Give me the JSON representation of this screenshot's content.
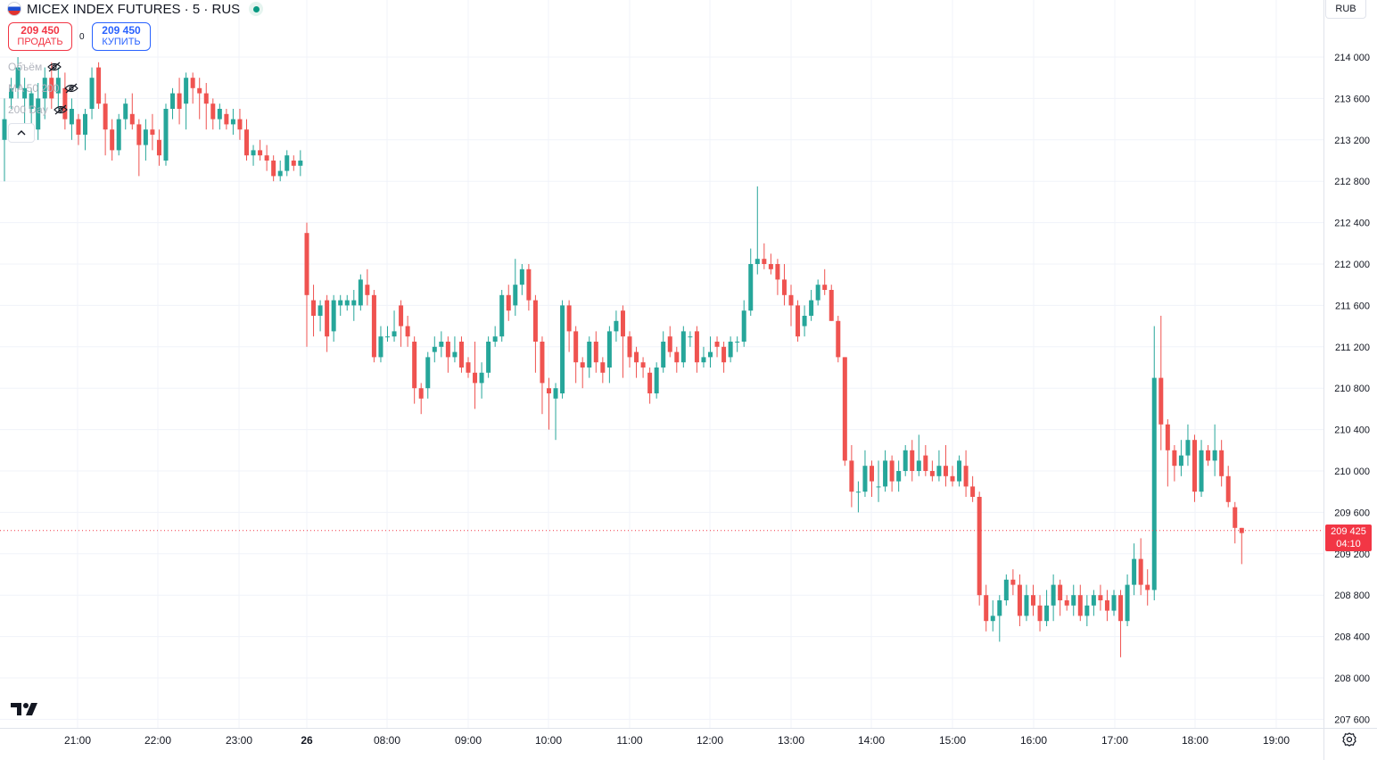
{
  "header": {
    "symbol_title": "MICEX INDEX FUTURES · 5 · RUS",
    "sell_price": "209 450",
    "sell_label": "ПРОДАТЬ",
    "spread": "0",
    "buy_price": "209 450",
    "buy_label": "КУПИТЬ",
    "indicators": [
      "Объём",
      "MA 50 200",
      "200 Day"
    ],
    "currency": "RUB"
  },
  "last_price": {
    "value": "209 425",
    "countdown": "04:10"
  },
  "colors": {
    "up": "#26a69a",
    "down": "#ef5350",
    "grid": "#f0f3fa",
    "last": "#f23645"
  },
  "chart_data": {
    "type": "candlestick",
    "title": "MICEX INDEX FUTURES · 5 · RUS",
    "ylim": [
      207400,
      214400
    ],
    "y_ticks": [
      "207 600",
      "208 000",
      "208 400",
      "208 800",
      "209 200",
      "209 600",
      "210 000",
      "210 400",
      "210 800",
      "211 200",
      "211 600",
      "212 000",
      "212 400",
      "212 800",
      "213 200",
      "213 600",
      "214 000"
    ],
    "x_ticks": [
      "21:00",
      "22:00",
      "23:00",
      "26",
      "08:00",
      "09:00",
      "10:00",
      "11:00",
      "12:00",
      "13:00",
      "14:00",
      "15:00",
      "16:00",
      "17:00",
      "18:00",
      "19:00"
    ],
    "last_price": 209425,
    "session_1": {
      "start": "20:25",
      "interval_min": 5,
      "candles": [
        [
          213200,
          213400,
          212800,
          213600
        ],
        [
          213600,
          213700,
          213500,
          213800
        ],
        [
          213700,
          213900,
          213600,
          214000
        ],
        [
          213600,
          213700,
          213350,
          213800
        ],
        [
          213500,
          213650,
          213300,
          213700
        ],
        [
          213300,
          213600,
          213200,
          213750
        ],
        [
          213600,
          213800,
          213400,
          213900
        ],
        [
          213800,
          213600,
          213500,
          213950
        ],
        [
          213650,
          213800,
          213500,
          213900
        ],
        [
          213700,
          213400,
          213300,
          213850
        ],
        [
          213350,
          213500,
          213200,
          213600
        ],
        [
          213400,
          213250,
          213150,
          213450
        ],
        [
          213250,
          213450,
          213100,
          213500
        ],
        [
          213500,
          213800,
          213400,
          213900
        ],
        [
          213900,
          213550,
          213500,
          213950
        ],
        [
          213550,
          213300,
          213050,
          213650
        ],
        [
          213300,
          213100,
          213000,
          213400
        ],
        [
          213100,
          213400,
          213050,
          213450
        ],
        [
          213400,
          213550,
          213300,
          213600
        ],
        [
          213450,
          213350,
          213300,
          213650
        ],
        [
          213350,
          213150,
          212850,
          213400
        ],
        [
          213150,
          213300,
          213000,
          213400
        ],
        [
          213300,
          213250,
          213100,
          213450
        ],
        [
          213200,
          213050,
          212950,
          213300
        ],
        [
          213000,
          213500,
          212950,
          213550
        ],
        [
          213500,
          213650,
          213400,
          213700
        ],
        [
          213650,
          213500,
          213350,
          213800
        ],
        [
          213550,
          213800,
          213300,
          213850
        ],
        [
          213800,
          213700,
          213550,
          213850
        ],
        [
          213700,
          213650,
          213400,
          213800
        ],
        [
          213650,
          213550,
          213300,
          213750
        ],
        [
          213550,
          213400,
          213300,
          213600
        ],
        [
          213400,
          213500,
          213300,
          213550
        ],
        [
          213450,
          213350,
          213300,
          213500
        ],
        [
          213350,
          213400,
          213250,
          213500
        ],
        [
          213400,
          213300,
          213200,
          213500
        ],
        [
          213300,
          213050,
          213000,
          213400
        ],
        [
          213050,
          213100,
          212950,
          213150
        ],
        [
          213100,
          213050,
          213000,
          213200
        ],
        [
          213050,
          213000,
          212900,
          213150
        ],
        [
          213000,
          212850,
          212800,
          213050
        ],
        [
          212850,
          212900,
          212800,
          213000
        ],
        [
          212900,
          213050,
          212850,
          213100
        ],
        [
          213000,
          212950,
          212900,
          213050
        ],
        [
          212950,
          213000,
          212850,
          213100
        ]
      ]
    },
    "session_2": {
      "start": "07:05",
      "interval_min": 5,
      "candles": [
        [
          212300,
          211700,
          211200,
          212400
        ],
        [
          211650,
          211500,
          211300,
          211800
        ],
        [
          211500,
          211600,
          211350,
          211650
        ],
        [
          211650,
          211300,
          211150,
          211700
        ],
        [
          211350,
          211650,
          211250,
          211700
        ],
        [
          211600,
          211650,
          211500,
          211700
        ],
        [
          211600,
          211650,
          211550,
          211700
        ],
        [
          211600,
          211650,
          211450,
          211750
        ],
        [
          211600,
          211850,
          211550,
          211900
        ],
        [
          211800,
          211700,
          211600,
          211950
        ],
        [
          211700,
          211100,
          211050,
          211750
        ],
        [
          211100,
          211300,
          211050,
          211400
        ],
        [
          211300,
          211300,
          211250,
          211400
        ],
        [
          211300,
          211350,
          211250,
          211550
        ],
        [
          211600,
          211400,
          211200,
          211650
        ],
        [
          211400,
          211300,
          211200,
          211500
        ],
        [
          211250,
          210800,
          210650,
          211300
        ],
        [
          210800,
          210700,
          210550,
          210850
        ],
        [
          210800,
          211100,
          210700,
          211150
        ],
        [
          211150,
          211200,
          211050,
          211300
        ],
        [
          211200,
          211250,
          211100,
          211350
        ],
        [
          211250,
          211100,
          210950,
          211300
        ],
        [
          211100,
          211150,
          211050,
          211300
        ],
        [
          211250,
          211000,
          210950,
          211300
        ],
        [
          211050,
          210950,
          210900,
          211100
        ],
        [
          210950,
          210850,
          210600,
          211250
        ],
        [
          210850,
          210950,
          210700,
          211050
        ],
        [
          210950,
          211250,
          210900,
          211300
        ],
        [
          211250,
          211300,
          211200,
          211400
        ],
        [
          211300,
          211700,
          211250,
          211750
        ],
        [
          211700,
          211550,
          211450,
          211800
        ],
        [
          211600,
          211800,
          211500,
          212050
        ],
        [
          211800,
          211950,
          211700,
          212000
        ],
        [
          211950,
          211650,
          211550,
          212000
        ],
        [
          211650,
          211250,
          210950,
          211700
        ],
        [
          211250,
          210850,
          210550,
          211300
        ],
        [
          210800,
          210750,
          210400,
          210900
        ],
        [
          210700,
          210800,
          210300,
          210850
        ],
        [
          210750,
          211600,
          210700,
          211650
        ],
        [
          211600,
          211350,
          211150,
          211650
        ],
        [
          211350,
          211050,
          210850,
          211400
        ],
        [
          211050,
          211000,
          210800,
          211100
        ],
        [
          211000,
          211250,
          210900,
          211300
        ],
        [
          211250,
          211050,
          210950,
          211350
        ],
        [
          211050,
          210950,
          210850,
          211100
        ],
        [
          211000,
          211350,
          210850,
          211400
        ],
        [
          211350,
          211450,
          211250,
          211550
        ],
        [
          211550,
          211300,
          210900,
          211600
        ],
        [
          211300,
          211100,
          211000,
          211350
        ],
        [
          211150,
          211050,
          210900,
          211200
        ],
        [
          211050,
          211000,
          210900,
          211100
        ],
        [
          210950,
          210750,
          210650,
          211000
        ],
        [
          210750,
          211000,
          210700,
          211050
        ],
        [
          211000,
          211250,
          210950,
          211350
        ],
        [
          211300,
          211150,
          211100,
          211400
        ],
        [
          211150,
          211050,
          210950,
          211200
        ],
        [
          211050,
          211350,
          211000,
          211400
        ],
        [
          211300,
          211300,
          211200,
          211350
        ],
        [
          211350,
          211050,
          210950,
          211400
        ],
        [
          211050,
          211100,
          211000,
          211200
        ],
        [
          211100,
          211150,
          211000,
          211300
        ],
        [
          211250,
          211200,
          211100,
          211300
        ],
        [
          211200,
          211050,
          210950,
          211250
        ],
        [
          211100,
          211250,
          211050,
          211300
        ],
        [
          211250,
          211250,
          211150,
          211300
        ],
        [
          211250,
          211550,
          211200,
          211650
        ],
        [
          211550,
          212000,
          211500,
          212150
        ],
        [
          212000,
          212050,
          211900,
          212750
        ],
        [
          212050,
          212000,
          211950,
          212200
        ],
        [
          212000,
          211950,
          211900,
          212100
        ],
        [
          212000,
          211850,
          211700,
          212050
        ],
        [
          211850,
          211700,
          211600,
          212000
        ],
        [
          211700,
          211600,
          211400,
          211800
        ],
        [
          211600,
          211300,
          211250,
          211650
        ],
        [
          211400,
          211500,
          211300,
          211600
        ],
        [
          211500,
          211650,
          211450,
          211750
        ],
        [
          211650,
          211800,
          211600,
          211850
        ],
        [
          211800,
          211750,
          211700,
          211950
        ],
        [
          211750,
          211450,
          211450,
          211800
        ],
        [
          211450,
          211100,
          211050,
          211500
        ],
        [
          211100,
          210100,
          210050,
          211100
        ],
        [
          210100,
          209800,
          209650,
          210250
        ],
        [
          209800,
          209800,
          209600,
          209900
        ],
        [
          209800,
          210050,
          209750,
          210200
        ],
        [
          210050,
          209900,
          209750,
          210100
        ],
        [
          209850,
          209850,
          209700,
          210100
        ],
        [
          209850,
          210100,
          209800,
          210200
        ],
        [
          210100,
          209900,
          209800,
          210150
        ],
        [
          209900,
          210000,
          209800,
          210100
        ],
        [
          210000,
          210200,
          209950,
          210250
        ],
        [
          210200,
          210000,
          209900,
          210300
        ],
        [
          210000,
          210100,
          209950,
          210350
        ],
        [
          210150,
          210000,
          209950,
          210250
        ],
        [
          210000,
          209950,
          209900,
          210100
        ],
        [
          209950,
          210050,
          209900,
          210200
        ],
        [
          210050,
          209950,
          209850,
          210250
        ],
        [
          209950,
          209900,
          209850,
          210050
        ],
        [
          209900,
          210100,
          209850,
          210150
        ],
        [
          210050,
          209850,
          209750,
          210200
        ],
        [
          209850,
          209750,
          209700,
          209950
        ],
        [
          209750,
          208800,
          208700,
          209800
        ],
        [
          208800,
          208550,
          208450,
          208900
        ],
        [
          208550,
          208600,
          208450,
          208750
        ],
        [
          208600,
          208750,
          208350,
          208800
        ],
        [
          208750,
          208950,
          208700,
          209000
        ],
        [
          208950,
          208900,
          208800,
          209050
        ],
        [
          208900,
          208600,
          208500,
          209000
        ],
        [
          208600,
          208800,
          208550,
          208900
        ],
        [
          208800,
          208700,
          208600,
          208900
        ],
        [
          208700,
          208550,
          208450,
          208800
        ],
        [
          208550,
          208700,
          208500,
          208850
        ],
        [
          208700,
          208900,
          208550,
          209000
        ],
        [
          208900,
          208750,
          208600,
          208950
        ],
        [
          208750,
          208700,
          208650,
          208800
        ],
        [
          208700,
          208800,
          208600,
          208900
        ],
        [
          208800,
          208600,
          208550,
          208900
        ],
        [
          208600,
          208700,
          208500,
          208800
        ],
        [
          208700,
          208800,
          208600,
          208850
        ],
        [
          208800,
          208750,
          208650,
          208900
        ],
        [
          208750,
          208650,
          208550,
          208850
        ],
        [
          208650,
          208800,
          208600,
          208850
        ],
        [
          208800,
          208550,
          208200,
          208850
        ],
        [
          208550,
          208900,
          208500,
          209000
        ],
        [
          208900,
          209150,
          208800,
          209300
        ],
        [
          209150,
          208900,
          208800,
          209350
        ],
        [
          208900,
          208850,
          208700,
          209050
        ],
        [
          208850,
          210900,
          208750,
          211400
        ],
        [
          210900,
          210450,
          210200,
          211500
        ],
        [
          210450,
          210200,
          209850,
          210500
        ],
        [
          210200,
          210050,
          209900,
          210250
        ],
        [
          210050,
          210150,
          209950,
          210300
        ],
        [
          210150,
          210300,
          210050,
          210450
        ],
        [
          210300,
          209800,
          209700,
          210350
        ],
        [
          209800,
          210200,
          209750,
          210300
        ],
        [
          210200,
          210100,
          210050,
          210250
        ],
        [
          210100,
          210200,
          209950,
          210450
        ],
        [
          210200,
          209950,
          209850,
          210300
        ],
        [
          209950,
          209700,
          209650,
          210050
        ],
        [
          209650,
          209450,
          209300,
          209700
        ],
        [
          209450,
          209400,
          209100,
          209450
        ]
      ]
    }
  }
}
